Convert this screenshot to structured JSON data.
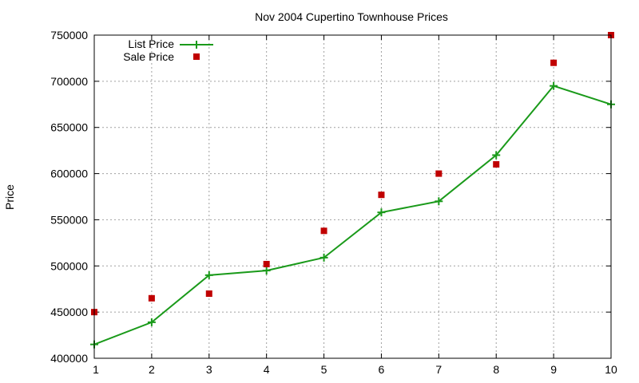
{
  "chart_data": {
    "type": "line",
    "title": "Nov 2004 Cupertino Townhouse Prices",
    "xlabel": "",
    "ylabel": "Price",
    "xlim": [
      1,
      10
    ],
    "ylim": [
      400000,
      750000
    ],
    "x_ticks": [
      "1",
      "2",
      "3",
      "4",
      "5",
      "6",
      "7",
      "8",
      "9",
      "10"
    ],
    "y_ticks": [
      "400000",
      "450000",
      "500000",
      "550000",
      "600000",
      "650000",
      "700000",
      "750000"
    ],
    "grid": true,
    "legend_position": "top-left",
    "x": [
      1,
      2,
      3,
      4,
      5,
      6,
      7,
      8,
      9,
      10
    ],
    "series": [
      {
        "name": "List Price",
        "style": "line-with-plus-markers",
        "color": "#1a9a1a",
        "values": [
          415000,
          439000,
          490000,
          495000,
          509000,
          558000,
          570000,
          620000,
          695000,
          675000
        ]
      },
      {
        "name": "Sale Price",
        "style": "square-markers",
        "color": "#c00000",
        "values": [
          450000,
          465000,
          470000,
          502000,
          538000,
          577000,
          600000,
          610000,
          720000,
          750000
        ]
      }
    ]
  }
}
